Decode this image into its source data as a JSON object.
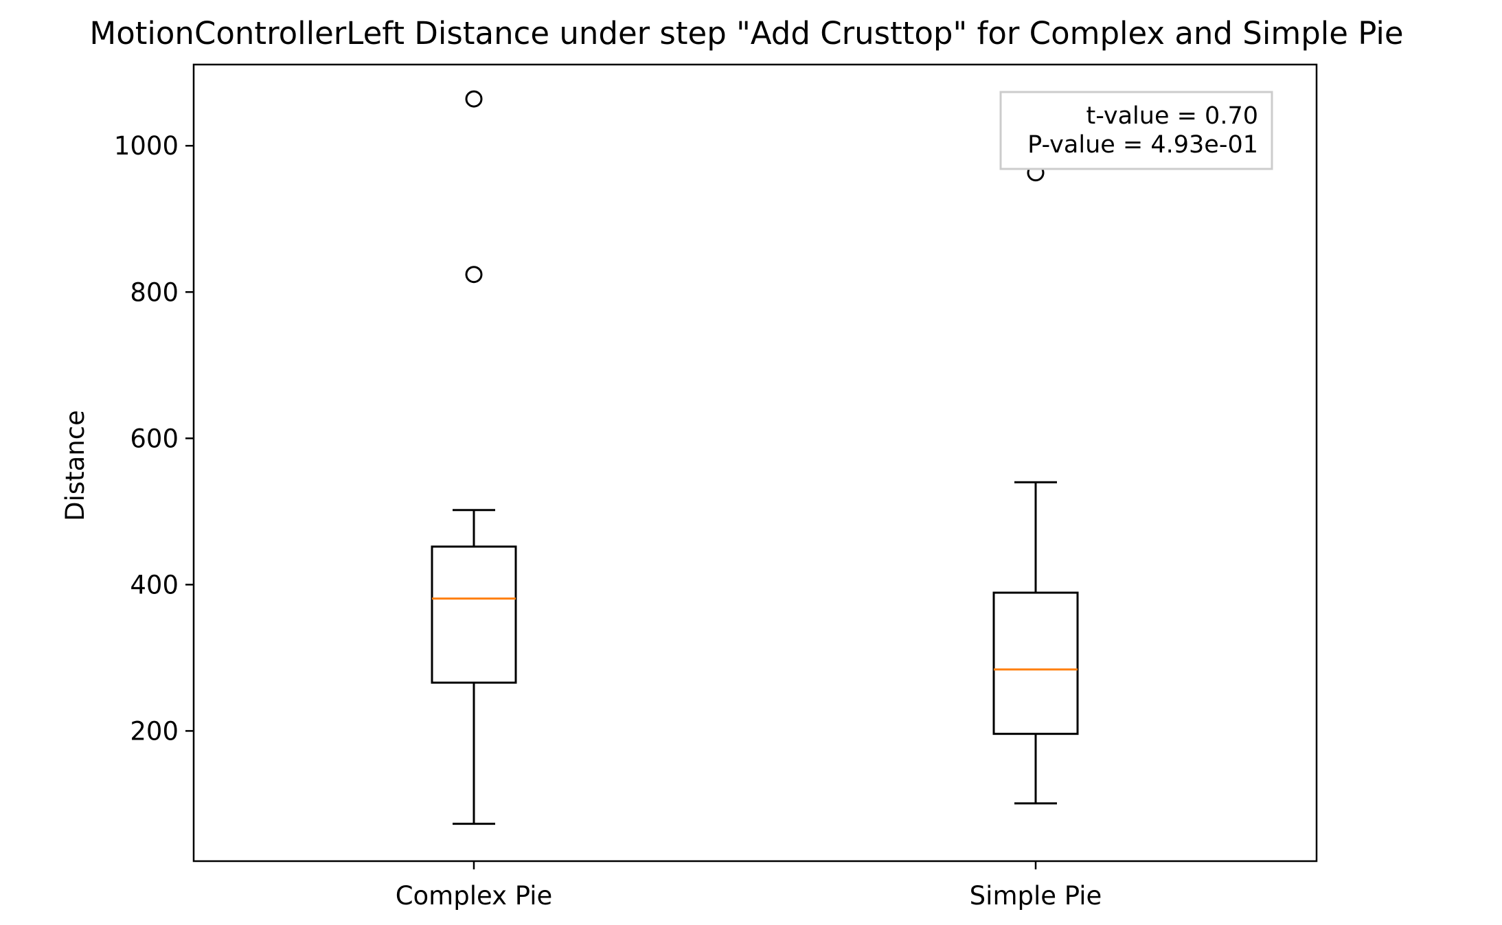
{
  "chart_data": {
    "type": "box",
    "title": "MotionControllerLeft Distance under step \"Add Crusttop\" for Complex and Simple Pie",
    "xlabel": "",
    "ylabel": "Distance",
    "ylim": [
      22,
      1111
    ],
    "yticks": [
      200,
      400,
      600,
      800,
      1000
    ],
    "categories": [
      "Complex Pie",
      "Simple Pie"
    ],
    "boxes": [
      {
        "name": "Complex Pie",
        "whisker_low": 73,
        "q1": 266,
        "median": 381,
        "q3": 452,
        "whisker_high": 502,
        "outliers": [
          824,
          1064
        ]
      },
      {
        "name": "Simple Pie",
        "whisker_low": 101,
        "q1": 196,
        "median": 284,
        "q3": 389,
        "whisker_high": 540,
        "outliers": [
          963
        ]
      }
    ],
    "annotation": {
      "lines": [
        "t-value = 0.70",
        "P-value = 4.93e-01"
      ],
      "placement": "top-right"
    },
    "colors": {
      "median": "#ff7f0e",
      "box": "#000000",
      "annotation_border": "#cccccc"
    },
    "grid": false
  }
}
